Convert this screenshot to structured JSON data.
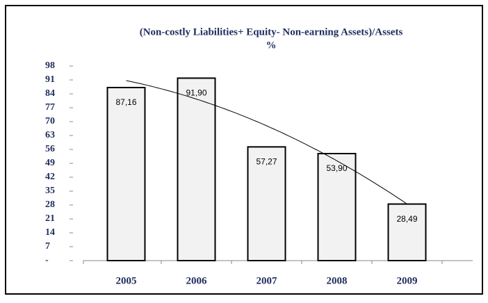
{
  "chart_data": {
    "type": "bar",
    "title": "(Non-costly Liabilities+ Equity- Non-earning Assets)/Assets",
    "subtitle": "%",
    "categories": [
      "2005",
      "2006",
      "2007",
      "2008",
      "2009"
    ],
    "values": [
      87.16,
      91.9,
      57.27,
      53.9,
      28.49
    ],
    "value_labels": [
      "87,16",
      "91,90",
      "57,27",
      "53,90",
      "28,49"
    ],
    "color": "#f2f2f2",
    "ylim": [
      0,
      98
    ],
    "yticks": [
      {
        "value": 0,
        "label": "-"
      },
      7,
      14,
      21,
      28,
      35,
      42,
      49,
      56,
      63,
      70,
      77,
      84,
      91,
      98
    ],
    "trendline": true
  }
}
